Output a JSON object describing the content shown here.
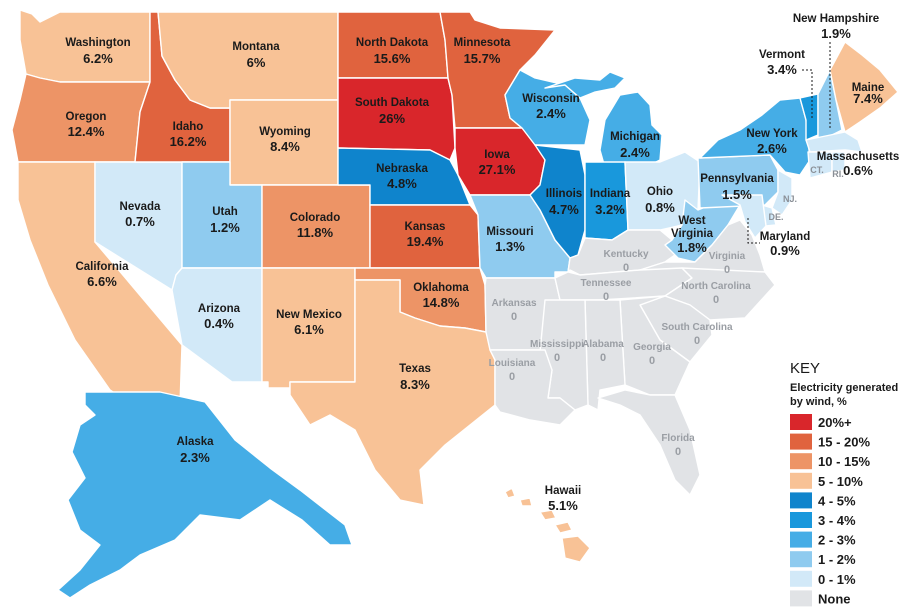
{
  "key": {
    "title": "KEY",
    "subtitle_line1": "Electricity generated",
    "subtitle_line2": "by wind, %",
    "items": [
      {
        "label": "20%+",
        "color": "#d9262b"
      },
      {
        "label": "15 - 20%",
        "color": "#e0633e"
      },
      {
        "label": "10 - 15%",
        "color": "#ed9466"
      },
      {
        "label": "5 - 10%",
        "color": "#f8c296"
      },
      {
        "label": "4 - 5%",
        "color": "#0f84cc"
      },
      {
        "label": "3 - 4%",
        "color": "#1998dc"
      },
      {
        "label": "2 - 3%",
        "color": "#45ade6"
      },
      {
        "label": "1 - 2%",
        "color": "#8fcbef"
      },
      {
        "label": "0 - 1%",
        "color": "#d2e9f8"
      },
      {
        "label": "None",
        "color": "#e1e3e6"
      }
    ]
  },
  "states": {
    "washington": {
      "name": "Washington",
      "value": "6.2%"
    },
    "oregon": {
      "name": "Oregon",
      "value": "12.4%"
    },
    "california": {
      "name": "California",
      "value": "6.6%"
    },
    "nevada": {
      "name": "Nevada",
      "value": "0.7%"
    },
    "idaho": {
      "name": "Idaho",
      "value": "16.2%"
    },
    "montana": {
      "name": "Montana",
      "value": "6%"
    },
    "wyoming": {
      "name": "Wyoming",
      "value": "8.4%"
    },
    "utah": {
      "name": "Utah",
      "value": "1.2%"
    },
    "arizona": {
      "name": "Arizona",
      "value": "0.4%"
    },
    "colorado": {
      "name": "Colorado",
      "value": "11.8%"
    },
    "new_mexico": {
      "name": "New Mexico",
      "value": "6.1%"
    },
    "north_dakota": {
      "name": "North Dakota",
      "value": "15.6%"
    },
    "south_dakota": {
      "name": "South Dakota",
      "value": "26%"
    },
    "nebraska": {
      "name": "Nebraska",
      "value": "4.8%"
    },
    "kansas": {
      "name": "Kansas",
      "value": "19.4%"
    },
    "oklahoma": {
      "name": "Oklahoma",
      "value": "14.8%"
    },
    "texas": {
      "name": "Texas",
      "value": "8.3%"
    },
    "minnesota": {
      "name": "Minnesota",
      "value": "15.7%"
    },
    "iowa": {
      "name": "Iowa",
      "value": "27.1%"
    },
    "missouri": {
      "name": "Missouri",
      "value": "1.3%"
    },
    "wisconsin": {
      "name": "Wisconsin",
      "value": "2.4%"
    },
    "illinois": {
      "name": "Illinois",
      "value": "4.7%"
    },
    "michigan": {
      "name": "Michigan",
      "value": "2.4%"
    },
    "indiana": {
      "name": "Indiana",
      "value": "3.2%"
    },
    "ohio": {
      "name": "Ohio",
      "value": "0.8%"
    },
    "west_virginia_line1": "West",
    "west_virginia": {
      "name": "Virginia",
      "value": "1.8%"
    },
    "pennsylvania": {
      "name": "Pennsylvania",
      "value": "1.5%"
    },
    "new_york": {
      "name": "New York",
      "value": "2.6%"
    },
    "maine": {
      "name": "Maine",
      "value": "7.4%"
    },
    "vermont": {
      "name": "Vermont",
      "value": "3.4%"
    },
    "new_hampshire": {
      "name": "New Hampshire",
      "value": "1.9%"
    },
    "massachusetts": {
      "name": "Massachusetts",
      "value": "0.6%"
    },
    "maryland": {
      "name": "Maryland",
      "value": "0.9%"
    },
    "alaska": {
      "name": "Alaska",
      "value": "2.3%"
    },
    "hawaii": {
      "name": "Hawaii",
      "value": "5.1%"
    },
    "arkansas": {
      "name": "Arkansas",
      "value": "0"
    },
    "louisiana": {
      "name": "Louisiana",
      "value": "0"
    },
    "mississippi": {
      "name": "Mississippi",
      "value": "0"
    },
    "alabama": {
      "name": "Alabama",
      "value": "0"
    },
    "georgia": {
      "name": "Georgia",
      "value": "0"
    },
    "florida": {
      "name": "Florida",
      "value": "0"
    },
    "south_carolina": {
      "name": "South Carolina",
      "value": "0"
    },
    "north_carolina": {
      "name": "North Carolina",
      "value": "0"
    },
    "tennessee": {
      "name": "Tennessee",
      "value": "0"
    },
    "kentucky": {
      "name": "Kentucky",
      "value": "0"
    },
    "virginia": {
      "name": "Virginia",
      "value": "0"
    }
  },
  "abbreviations": {
    "ct": "CT.",
    "ri": "RI.",
    "nj": "NJ.",
    "de": "DE."
  }
}
